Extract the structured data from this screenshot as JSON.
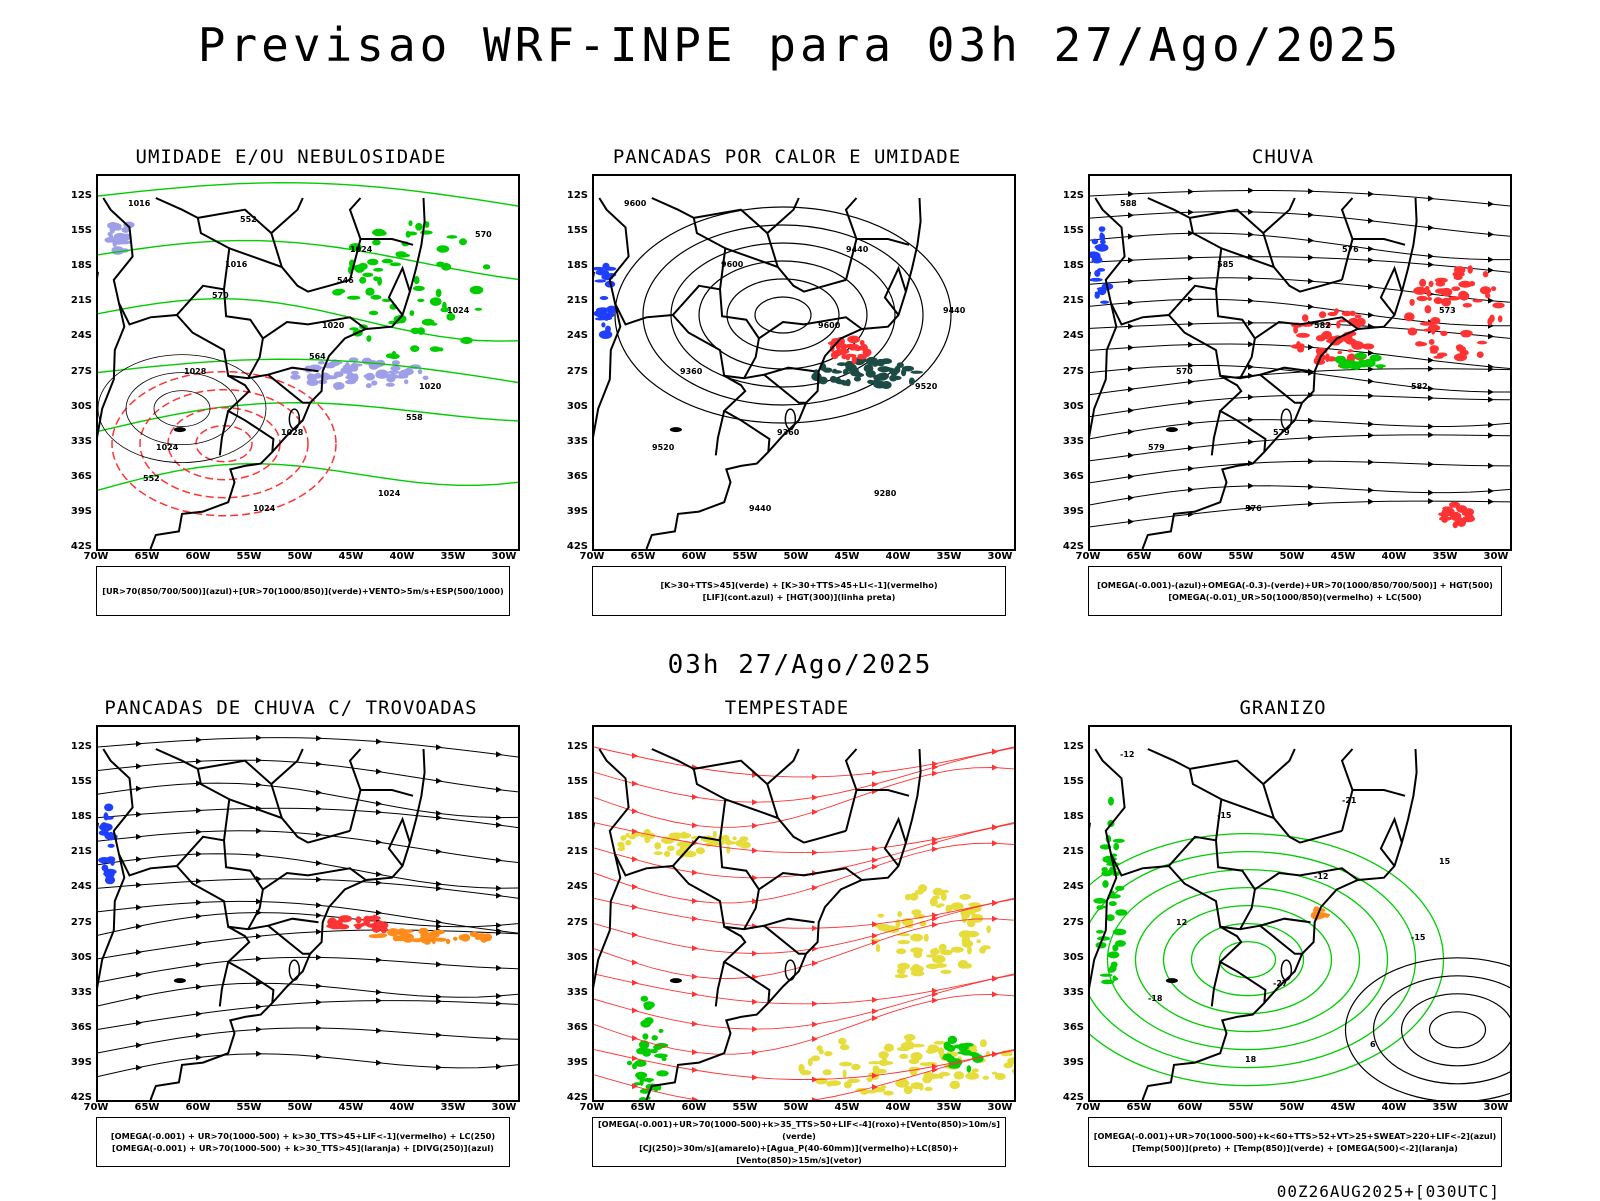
{
  "header": {
    "title": "Previsao WRF-INPE  para 03h 27/Ago/2025"
  },
  "subheader": {
    "title": "03h 27/Ago/2025"
  },
  "footer": {
    "text": "00Z26AUG2025+[030UTC]"
  },
  "axes": {
    "lat_labels": [
      "12S",
      "15S",
      "18S",
      "21S",
      "24S",
      "27S",
      "30S",
      "33S",
      "36S",
      "39S",
      "42S"
    ],
    "lon_labels": [
      "70W",
      "65W",
      "60W",
      "55W",
      "50W",
      "45W",
      "40W",
      "35W",
      "30W"
    ]
  },
  "colors": {
    "green": "#00cc00",
    "red": "#ff3333",
    "blue": "#1f3fff",
    "lavender": "#9f9fe8",
    "darkteal": "#1c4a44",
    "yellow": "#e6dc3c",
    "orange": "#ff8c1a"
  },
  "panels": [
    {
      "id": "umidade",
      "title": "UMIDADE E/OU NEBULOSIDADE",
      "legend": [
        "[UR>70(850/700/500)](azul)+[UR>70(1000/850)](verde)+VENTO>5m/s+ESP(500/1000)"
      ],
      "contour_labels": [
        "1016",
        "1016",
        "1020",
        "1020",
        "1024",
        "1024",
        "1024",
        "1024",
        "1028",
        "1028",
        "1024",
        "570",
        "570",
        "564",
        "558",
        "552",
        "552",
        "546"
      ]
    },
    {
      "id": "pancadas-calor",
      "title": "PANCADAS POR CALOR E UMIDADE",
      "legend": [
        "[K>30+TTS>45](verde) + [K>30+TTS>45+LI<-1](vermelho)",
        "[LIF](cont.azul) + [HGT(300)](linha preta)"
      ],
      "contour_labels": [
        "9600",
        "9600",
        "9600",
        "9520",
        "9520",
        "9440",
        "9440",
        "9440",
        "9360",
        "9360",
        "9280"
      ]
    },
    {
      "id": "chuva",
      "title": "CHUVA",
      "legend": [
        "[OMEGA(-0.001)-(azul)+OMEGA(-0.3)-(verde)+UR>70(1000/850/700/500)] + HGT(500)",
        "[OMEGA(-0.01)_UR>50(1000/850)(vermelho) + LC(500)"
      ],
      "contour_labels": [
        "588",
        "585",
        "582",
        "582",
        "579",
        "576",
        "576",
        "573",
        "570",
        "579"
      ]
    },
    {
      "id": "trovoadas",
      "title": "PANCADAS DE CHUVA C/ TROVOADAS",
      "legend": [
        "[OMEGA(-0.001) + UR>70(1000-500) + k>30_TTS>45+LIF<-1](vermelho) + LC(250)",
        "[OMEGA(-0.001) + UR>70(1000-500) + k>30_TTS>45](laranja) + [DIVG(250)](azul)"
      ],
      "contour_labels": []
    },
    {
      "id": "tempestade",
      "title": "TEMPESTADE",
      "legend": [
        "[OMEGA(-0.001)+UR>70(1000-500)+k>35_TTS>50+LIF<-4](roxo)+[Vento(850)>10m/s](verde)",
        "[CJ(250)>30m/s](amarelo)+[Agua_P(40-60mm)](vermelho)+LC(850)+[Vento(850)>15m/s](vetor)"
      ],
      "contour_labels": []
    },
    {
      "id": "granizo",
      "title": "GRANIZO",
      "legend": [
        "[OMEGA(-0.001)+UR>70(1000-500)+k<60+TTS>52+VT>25+SWEAT>220+LIF<-2](azul)",
        "[Temp(500)](preto) + [Temp(850)](verde) + [OMEGA(500)<-2](laranja)"
      ],
      "contour_labels": [
        "-12",
        "-15",
        "-12",
        "-15",
        "-18",
        "18",
        "-21",
        "15",
        "12",
        "-27",
        "6"
      ]
    }
  ]
}
